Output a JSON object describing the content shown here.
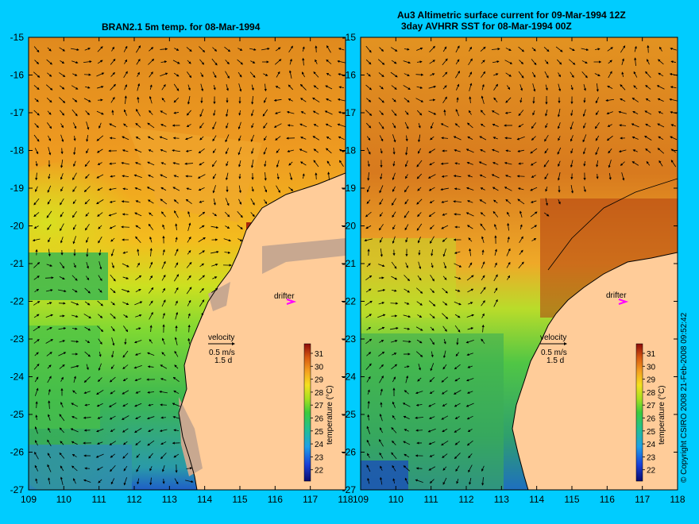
{
  "left_panel": {
    "title": "BRAN2.1 5m temp. for 08-Mar-1994"
  },
  "right_panel": {
    "title_line1": "Au3 Altimetric surface current for 09-Mar-1994 12Z",
    "title_line2": "3day AVHRR SST for 08-Mar-1994 00Z"
  },
  "axes": {
    "lon_ticks": [
      "109",
      "110",
      "111",
      "112",
      "113",
      "114",
      "115",
      "116",
      "117",
      "118"
    ],
    "lat_ticks": [
      "-15",
      "-16",
      "-17",
      "-18",
      "-19",
      "-20",
      "-21",
      "-22",
      "-23",
      "-24",
      "-25",
      "-26",
      "-27"
    ]
  },
  "legend": {
    "drifter_label": "drifter",
    "velocity_label": "velocity",
    "velocity_scale": "0.5 m/s",
    "time_scale": "1.5 d"
  },
  "colorbar": {
    "ticks": [
      "31",
      "30",
      "29",
      "28",
      "27",
      "26",
      "25",
      "24",
      "23",
      "22"
    ],
    "label": "temperature (°C)"
  },
  "copyright": "© Copyright CSIRO 2008    21-Feb-2008 09:52:42",
  "colors": {
    "background": "#00CCFF",
    "land": "#FFCC99",
    "drifter": "#FF00FF"
  }
}
